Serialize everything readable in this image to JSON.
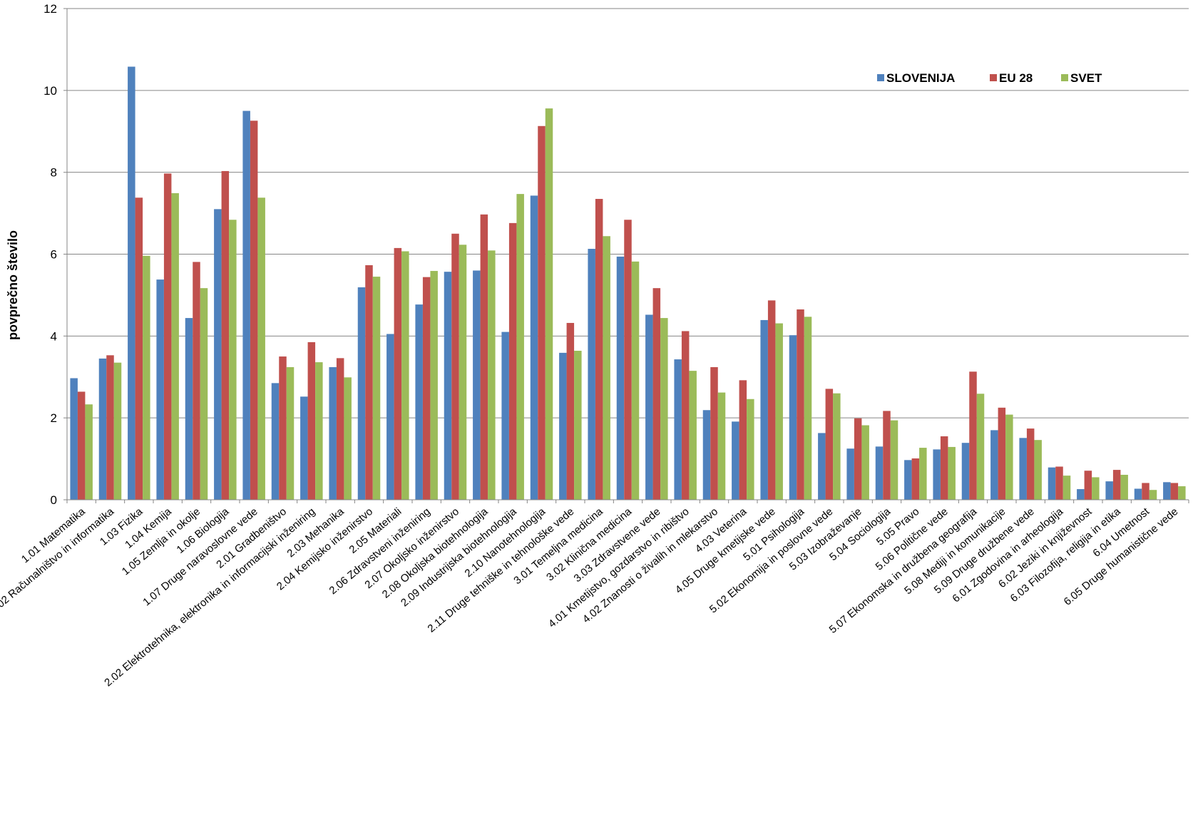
{
  "chart_data": {
    "type": "bar",
    "title": "",
    "xlabel": "",
    "ylabel": "povprečno število",
    "ylim": [
      0,
      12
    ],
    "yticks": [
      0,
      2,
      4,
      6,
      8,
      10,
      12
    ],
    "grid": true,
    "legend_position": "top-right",
    "categories": [
      "1.01 Matematika",
      "1.02 Računalništvo in informatika",
      "1.03 Fizika",
      "1.04 Kemija",
      "1.05 Zemlja in okolje",
      "1.06 Biologija",
      "1.07 Druge naravoslovne vede",
      "2.01 Gradbeništvo",
      "2.02 Elektrotehnika, elektronika in informacijski inženiring",
      "2.03 Mehanika",
      "2.04 Kemijsko inženirstvo",
      "2.05 Materiali",
      "2.06 Zdravstveni inženiring",
      "2.07 Okoljsko inženirstvo",
      "2.08 Okoljska biotehnologija",
      "2.09 Industrijska biotehnologija",
      "2.10 Nanotehnologija",
      "2.11 Druge tehniške in tehnološke vede",
      "3.01 Temeljna medicina",
      "3.02 Klinična medicina",
      "3.03 Zdravstvene vede",
      "4.01 Kmetijstvo, gozdarstvo in ribištvo",
      "4.02 Znanosti o živalih in mlekarstvo",
      "4.03 Veterina",
      "4.05 Druge kmetijske vede",
      "5.01 Psihologija",
      "5.02 Ekonomija in poslovne vede",
      "5.03 Izobraževanje",
      "5.04 Sociologija",
      "5.05 Pravo",
      "5.06 Politične vede",
      "5.07 Ekonomska in družbena geografija",
      "5.08 Mediji in komunikacije",
      "5.09 Druge družbene vede",
      "6.01 Zgodovina in arheologija",
      "6.02 Jeziki in književnost",
      "6.03 Filozofija, religija in etika",
      "6.04 Umetnost",
      "6.05 Druge humanistične vede"
    ],
    "series": [
      {
        "name": "SLOVENIJA",
        "color": "#4f81bd",
        "values": [
          2.97,
          3.45,
          10.58,
          5.38,
          4.44,
          7.1,
          9.5,
          2.85,
          2.52,
          3.24,
          5.19,
          4.05,
          4.77,
          5.57,
          5.6,
          4.1,
          7.43,
          3.59,
          6.13,
          5.94,
          4.52,
          3.43,
          2.19,
          1.91,
          4.39,
          4.02,
          1.63,
          1.25,
          1.3,
          0.97,
          1.23,
          1.39,
          1.7,
          1.51,
          0.79,
          0.26,
          0.45,
          0.27,
          0.43
        ]
      },
      {
        "name": "EU 28",
        "color": "#c0504d",
        "values": [
          2.64,
          3.53,
          7.38,
          7.97,
          5.81,
          8.03,
          9.26,
          3.5,
          3.85,
          3.46,
          5.73,
          6.15,
          5.44,
          6.5,
          6.97,
          6.76,
          9.13,
          4.32,
          7.35,
          6.84,
          5.17,
          4.12,
          3.24,
          2.92,
          4.87,
          4.65,
          2.71,
          1.99,
          2.17,
          1.01,
          1.55,
          3.13,
          2.25,
          1.74,
          0.81,
          0.71,
          0.73,
          0.41,
          0.41
        ]
      },
      {
        "name": "SVET",
        "color": "#9bbb59",
        "values": [
          2.33,
          3.35,
          5.96,
          7.49,
          5.17,
          6.84,
          7.38,
          3.24,
          3.36,
          2.99,
          5.45,
          6.07,
          5.59,
          6.23,
          6.09,
          7.47,
          9.56,
          3.64,
          6.44,
          5.82,
          4.44,
          3.15,
          2.62,
          2.46,
          4.31,
          4.47,
          2.6,
          1.82,
          1.94,
          1.27,
          1.29,
          2.59,
          2.08,
          1.46,
          0.59,
          0.55,
          0.61,
          0.24,
          0.33
        ]
      }
    ]
  }
}
